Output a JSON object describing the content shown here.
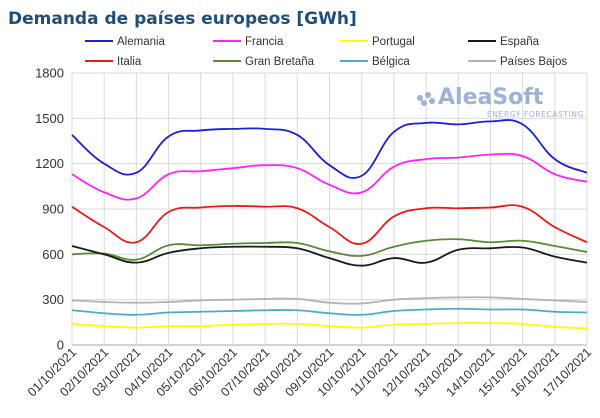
{
  "chart_data": {
    "type": "line",
    "title": "Demanda de países europeos [GWh]",
    "xlabel": "",
    "ylabel": "",
    "ylim": [
      0,
      1800
    ],
    "yticks": [
      0,
      300,
      600,
      900,
      1200,
      1500,
      1800
    ],
    "grid": true,
    "legend_position": "top",
    "categories": [
      "01/10/2021",
      "02/10/2021",
      "03/10/2021",
      "04/10/2021",
      "05/10/2021",
      "06/10/2021",
      "07/10/2021",
      "08/10/2021",
      "09/10/2021",
      "10/10/2021",
      "11/10/2021",
      "12/10/2021",
      "13/10/2021",
      "14/10/2021",
      "15/10/2021",
      "16/10/2021",
      "17/10/2021"
    ],
    "series": [
      {
        "name": "Alemania",
        "color": "#1f1fd6",
        "values": [
          1390,
          1200,
          1140,
          1380,
          1420,
          1430,
          1430,
          1390,
          1190,
          1120,
          1410,
          1470,
          1460,
          1480,
          1460,
          1230,
          1140
        ]
      },
      {
        "name": "Francia",
        "color": "#ff22ff",
        "values": [
          1130,
          1010,
          970,
          1130,
          1150,
          1170,
          1190,
          1170,
          1060,
          1010,
          1180,
          1230,
          1240,
          1260,
          1250,
          1130,
          1080
        ]
      },
      {
        "name": "Portugal",
        "color": "#ffff00",
        "values": [
          140,
          125,
          115,
          125,
          125,
          135,
          140,
          140,
          125,
          115,
          135,
          140,
          145,
          145,
          140,
          120,
          110
        ]
      },
      {
        "name": "España",
        "color": "#1a1a1a",
        "values": [
          655,
          600,
          545,
          610,
          640,
          650,
          650,
          640,
          575,
          525,
          575,
          545,
          630,
          640,
          645,
          585,
          545
        ]
      },
      {
        "name": "Italia",
        "color": "#e51c1c",
        "values": [
          915,
          780,
          680,
          880,
          910,
          920,
          915,
          905,
          780,
          670,
          850,
          905,
          905,
          910,
          915,
          780,
          680
        ]
      },
      {
        "name": "Gran Bretaña",
        "color": "#5b8a3c",
        "values": [
          600,
          605,
          565,
          660,
          660,
          670,
          675,
          675,
          620,
          590,
          650,
          690,
          700,
          680,
          690,
          655,
          615
        ]
      },
      {
        "name": "Bélgica",
        "color": "#4bacc6",
        "values": [
          230,
          210,
          200,
          215,
          220,
          225,
          230,
          230,
          210,
          200,
          225,
          235,
          240,
          235,
          235,
          220,
          215
        ]
      },
      {
        "name": "Países Bajos",
        "color": "#b3b3b3",
        "values": [
          295,
          285,
          280,
          285,
          295,
          300,
          305,
          305,
          280,
          275,
          300,
          310,
          315,
          315,
          305,
          295,
          285
        ]
      }
    ],
    "watermark": {
      "brand": "AleaSoft",
      "tagline": "ENERGY FORECASTING"
    }
  }
}
